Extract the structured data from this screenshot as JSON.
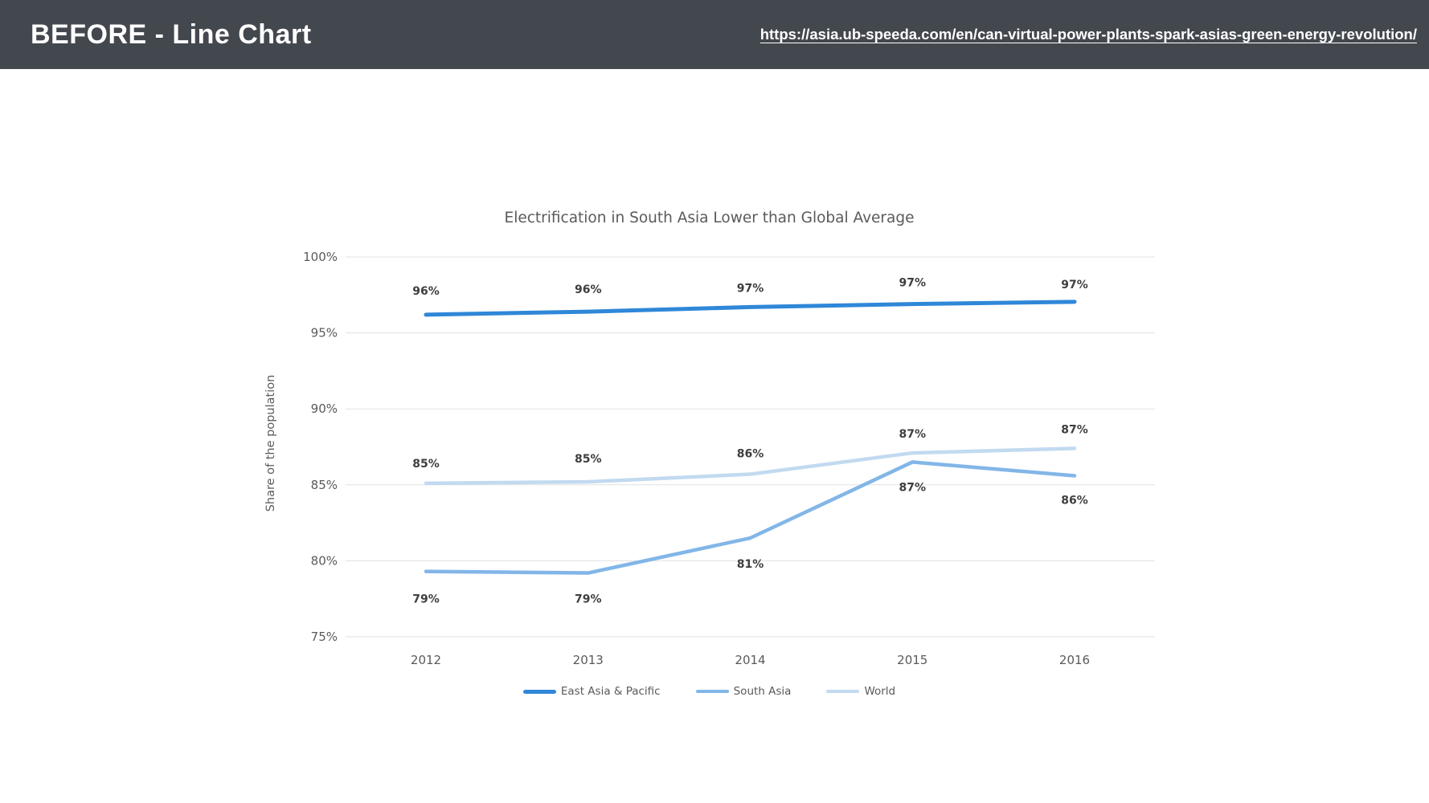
{
  "header": {
    "title": "BEFORE - Line Chart",
    "link_text": "https://asia.ub-speeda.com/en/can-virtual-power-plants-spark-asias-green-energy-revolution/",
    "background": "#43474E",
    "text_color": "#FFFFFF"
  },
  "chart_data": {
    "type": "line",
    "title": "Electrification in South Asia Lower than Global Average",
    "xlabel": "",
    "ylabel": "Share of the population",
    "categories": [
      "2012",
      "2013",
      "2014",
      "2015",
      "2016"
    ],
    "series": [
      {
        "name": "East Asia & Pacific",
        "color": "#2F87D8",
        "line_width": 5,
        "values": [
          96,
          96,
          97,
          97,
          97
        ],
        "data_labels": [
          "96%",
          "96%",
          "97%",
          "97%",
          "97%"
        ],
        "plot_values": [
          96.2,
          96.4,
          96.7,
          96.9,
          97.05
        ],
        "label_dy": [
          -29,
          -27,
          -23,
          -26,
          -21
        ]
      },
      {
        "name": "South Asia",
        "color": "#82B6E8",
        "line_width": 4.5,
        "values": [
          79,
          79,
          81,
          87,
          86
        ],
        "data_labels": [
          "79%",
          "79%",
          "81%",
          "87%",
          "86%"
        ],
        "plot_values": [
          79.3,
          79.2,
          81.5,
          86.5,
          85.6
        ],
        "label_dy": [
          35,
          33,
          33,
          32,
          31
        ]
      },
      {
        "name": "World",
        "color": "#C2DAF0",
        "line_width": 4.5,
        "values": [
          85,
          85,
          86,
          87,
          87
        ],
        "data_labels": [
          "85%",
          "85%",
          "86%",
          "87%",
          "87%"
        ],
        "plot_values": [
          85.1,
          85.2,
          85.7,
          87.1,
          87.4
        ],
        "label_dy": [
          -24,
          -28,
          -25,
          -23,
          -23
        ]
      }
    ],
    "ylim": [
      75,
      100
    ],
    "yticks": [
      "100%",
      "95%",
      "90%",
      "85%",
      "80%",
      "75%"
    ],
    "ytick_values": [
      100,
      95,
      90,
      85,
      80,
      75
    ],
    "grid": true,
    "grid_color": "#E1E1E1",
    "text_color": "#5A5A5A",
    "label_color": "#3E3E3E",
    "legend_position": "bottom"
  }
}
